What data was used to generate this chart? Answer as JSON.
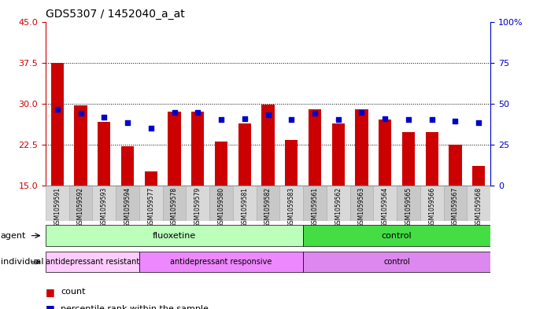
{
  "title": "GDS5307 / 1452040_a_at",
  "samples": [
    "GSM1059591",
    "GSM1059592",
    "GSM1059593",
    "GSM1059594",
    "GSM1059577",
    "GSM1059578",
    "GSM1059579",
    "GSM1059580",
    "GSM1059581",
    "GSM1059582",
    "GSM1059583",
    "GSM1059561",
    "GSM1059562",
    "GSM1059563",
    "GSM1059564",
    "GSM1059565",
    "GSM1059566",
    "GSM1059567",
    "GSM1059568"
  ],
  "bar_values": [
    37.5,
    29.7,
    26.6,
    22.2,
    17.5,
    28.5,
    28.5,
    23.0,
    26.3,
    29.8,
    23.3,
    29.0,
    26.3,
    29.0,
    27.0,
    24.8,
    24.8,
    22.5,
    18.5
  ],
  "blue_dot_values": [
    29.0,
    28.2,
    27.5,
    26.5,
    25.5,
    28.3,
    28.3,
    27.0,
    27.2,
    28.0,
    27.0,
    28.2,
    27.0,
    28.3,
    27.2,
    27.0,
    27.0,
    26.8,
    26.5
  ],
  "y_min": 15,
  "y_max": 45,
  "y_ticks_left": [
    15,
    22.5,
    30,
    37.5,
    45
  ],
  "y_ticks_right": [
    0,
    25,
    50,
    75,
    100
  ],
  "bar_color": "#cc0000",
  "dot_color": "#0000cc",
  "agent_groups": [
    {
      "label": "fluoxetine",
      "start": 0,
      "end": 11,
      "color": "#bbffbb"
    },
    {
      "label": "control",
      "start": 11,
      "end": 19,
      "color": "#44dd44"
    }
  ],
  "individual_groups": [
    {
      "label": "antidepressant resistant",
      "start": 0,
      "end": 4,
      "color": "#ffccff"
    },
    {
      "label": "antidepressant responsive",
      "start": 4,
      "end": 11,
      "color": "#ee88ff"
    },
    {
      "label": "control",
      "start": 11,
      "end": 19,
      "color": "#dd88ee"
    }
  ],
  "tick_color_left": "#cc0000",
  "tick_color_right": "#0000cc"
}
